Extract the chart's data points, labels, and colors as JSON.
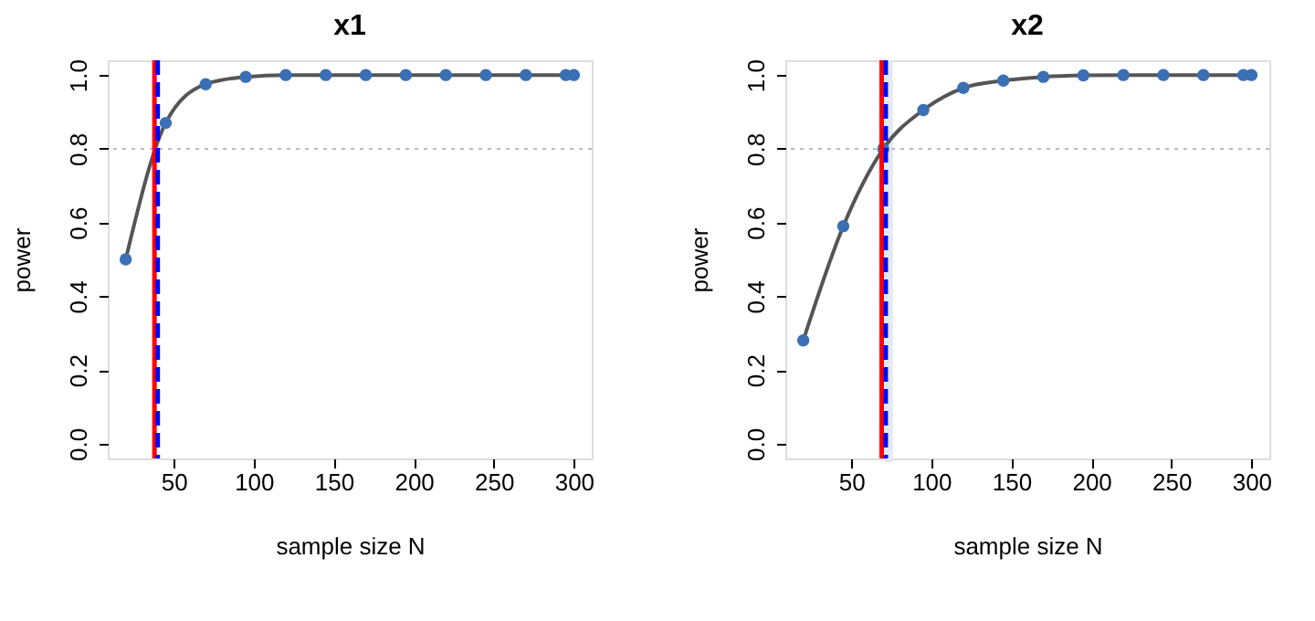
{
  "chart_data": [
    {
      "type": "line",
      "title": "x1",
      "xlabel": "sample size N",
      "ylabel": "power",
      "x": [
        20,
        45,
        70,
        95,
        120,
        145,
        170,
        195,
        220,
        245,
        270,
        295,
        300
      ],
      "series": [
        {
          "color": "#555555",
          "values": [
            0.5,
            0.87,
            0.975,
            0.995,
            1,
            1,
            1,
            1,
            1,
            1,
            1,
            1,
            1
          ]
        },
        {
          "type": "scatter",
          "color": "#3a6fb5",
          "values": [
            0.5,
            0.87,
            0.975,
            0.995,
            1,
            1,
            1,
            1,
            1,
            1,
            1,
            1,
            1
          ]
        }
      ],
      "xlim": [
        8.8,
        311.2
      ],
      "ylim": [
        -0.04,
        1.04
      ],
      "xticks": [
        50,
        100,
        150,
        200,
        250,
        300
      ],
      "yticks": [
        {
          "value": 0,
          "label": "0.0"
        },
        {
          "value": 0.2,
          "label": "0.2"
        },
        {
          "value": 0.4,
          "label": "0.4"
        },
        {
          "value": 0.6,
          "label": "0.6"
        },
        {
          "value": 0.8,
          "label": "0.8"
        },
        {
          "value": 1,
          "label": "1.0"
        }
      ],
      "grid": false,
      "ref_lines": [
        {
          "axis": "y",
          "value": 0.8,
          "color": "#bbbbbb",
          "line_style": "dotted"
        },
        {
          "axis": "x",
          "value": 38,
          "color": "#ff0000",
          "line_style": "solid"
        },
        {
          "axis": "x",
          "value": 40,
          "color": "#0000ff",
          "line_style": "dashed"
        }
      ]
    },
    {
      "type": "line",
      "title": "x2",
      "xlabel": "sample size N",
      "ylabel": "power",
      "x": [
        20,
        45,
        70,
        95,
        120,
        145,
        170,
        195,
        220,
        245,
        270,
        295,
        300
      ],
      "series": [
        {
          "color": "#555555",
          "values": [
            0.28,
            0.59,
            0.8,
            0.905,
            0.965,
            0.985,
            0.995,
            0.999,
            1,
            1,
            1,
            1,
            1
          ]
        },
        {
          "type": "scatter",
          "color": "#3a6fb5",
          "values": [
            0.28,
            0.59,
            0.8,
            0.905,
            0.965,
            0.985,
            0.995,
            0.999,
            1,
            1,
            1,
            1,
            1
          ]
        }
      ],
      "xlim": [
        8.8,
        311.2
      ],
      "ylim": [
        -0.04,
        1.04
      ],
      "xticks": [
        50,
        100,
        150,
        200,
        250,
        300
      ],
      "yticks": [
        {
          "value": 0,
          "label": "0.0"
        },
        {
          "value": 0.2,
          "label": "0.2"
        },
        {
          "value": 0.4,
          "label": "0.4"
        },
        {
          "value": 0.6,
          "label": "0.6"
        },
        {
          "value": 0.8,
          "label": "0.8"
        },
        {
          "value": 1,
          "label": "1.0"
        }
      ],
      "grid": false,
      "bands": [
        {
          "axis": "x",
          "from": 71,
          "to": 76,
          "color": "#e3e8f5"
        }
      ],
      "ref_lines": [
        {
          "axis": "y",
          "value": 0.8,
          "color": "#bbbbbb",
          "line_style": "dotted"
        },
        {
          "axis": "x",
          "value": 69,
          "color": "#ff0000",
          "line_style": "solid"
        },
        {
          "axis": "x",
          "value": 71.5,
          "color": "#0000ff",
          "line_style": "dashed"
        }
      ]
    }
  ]
}
